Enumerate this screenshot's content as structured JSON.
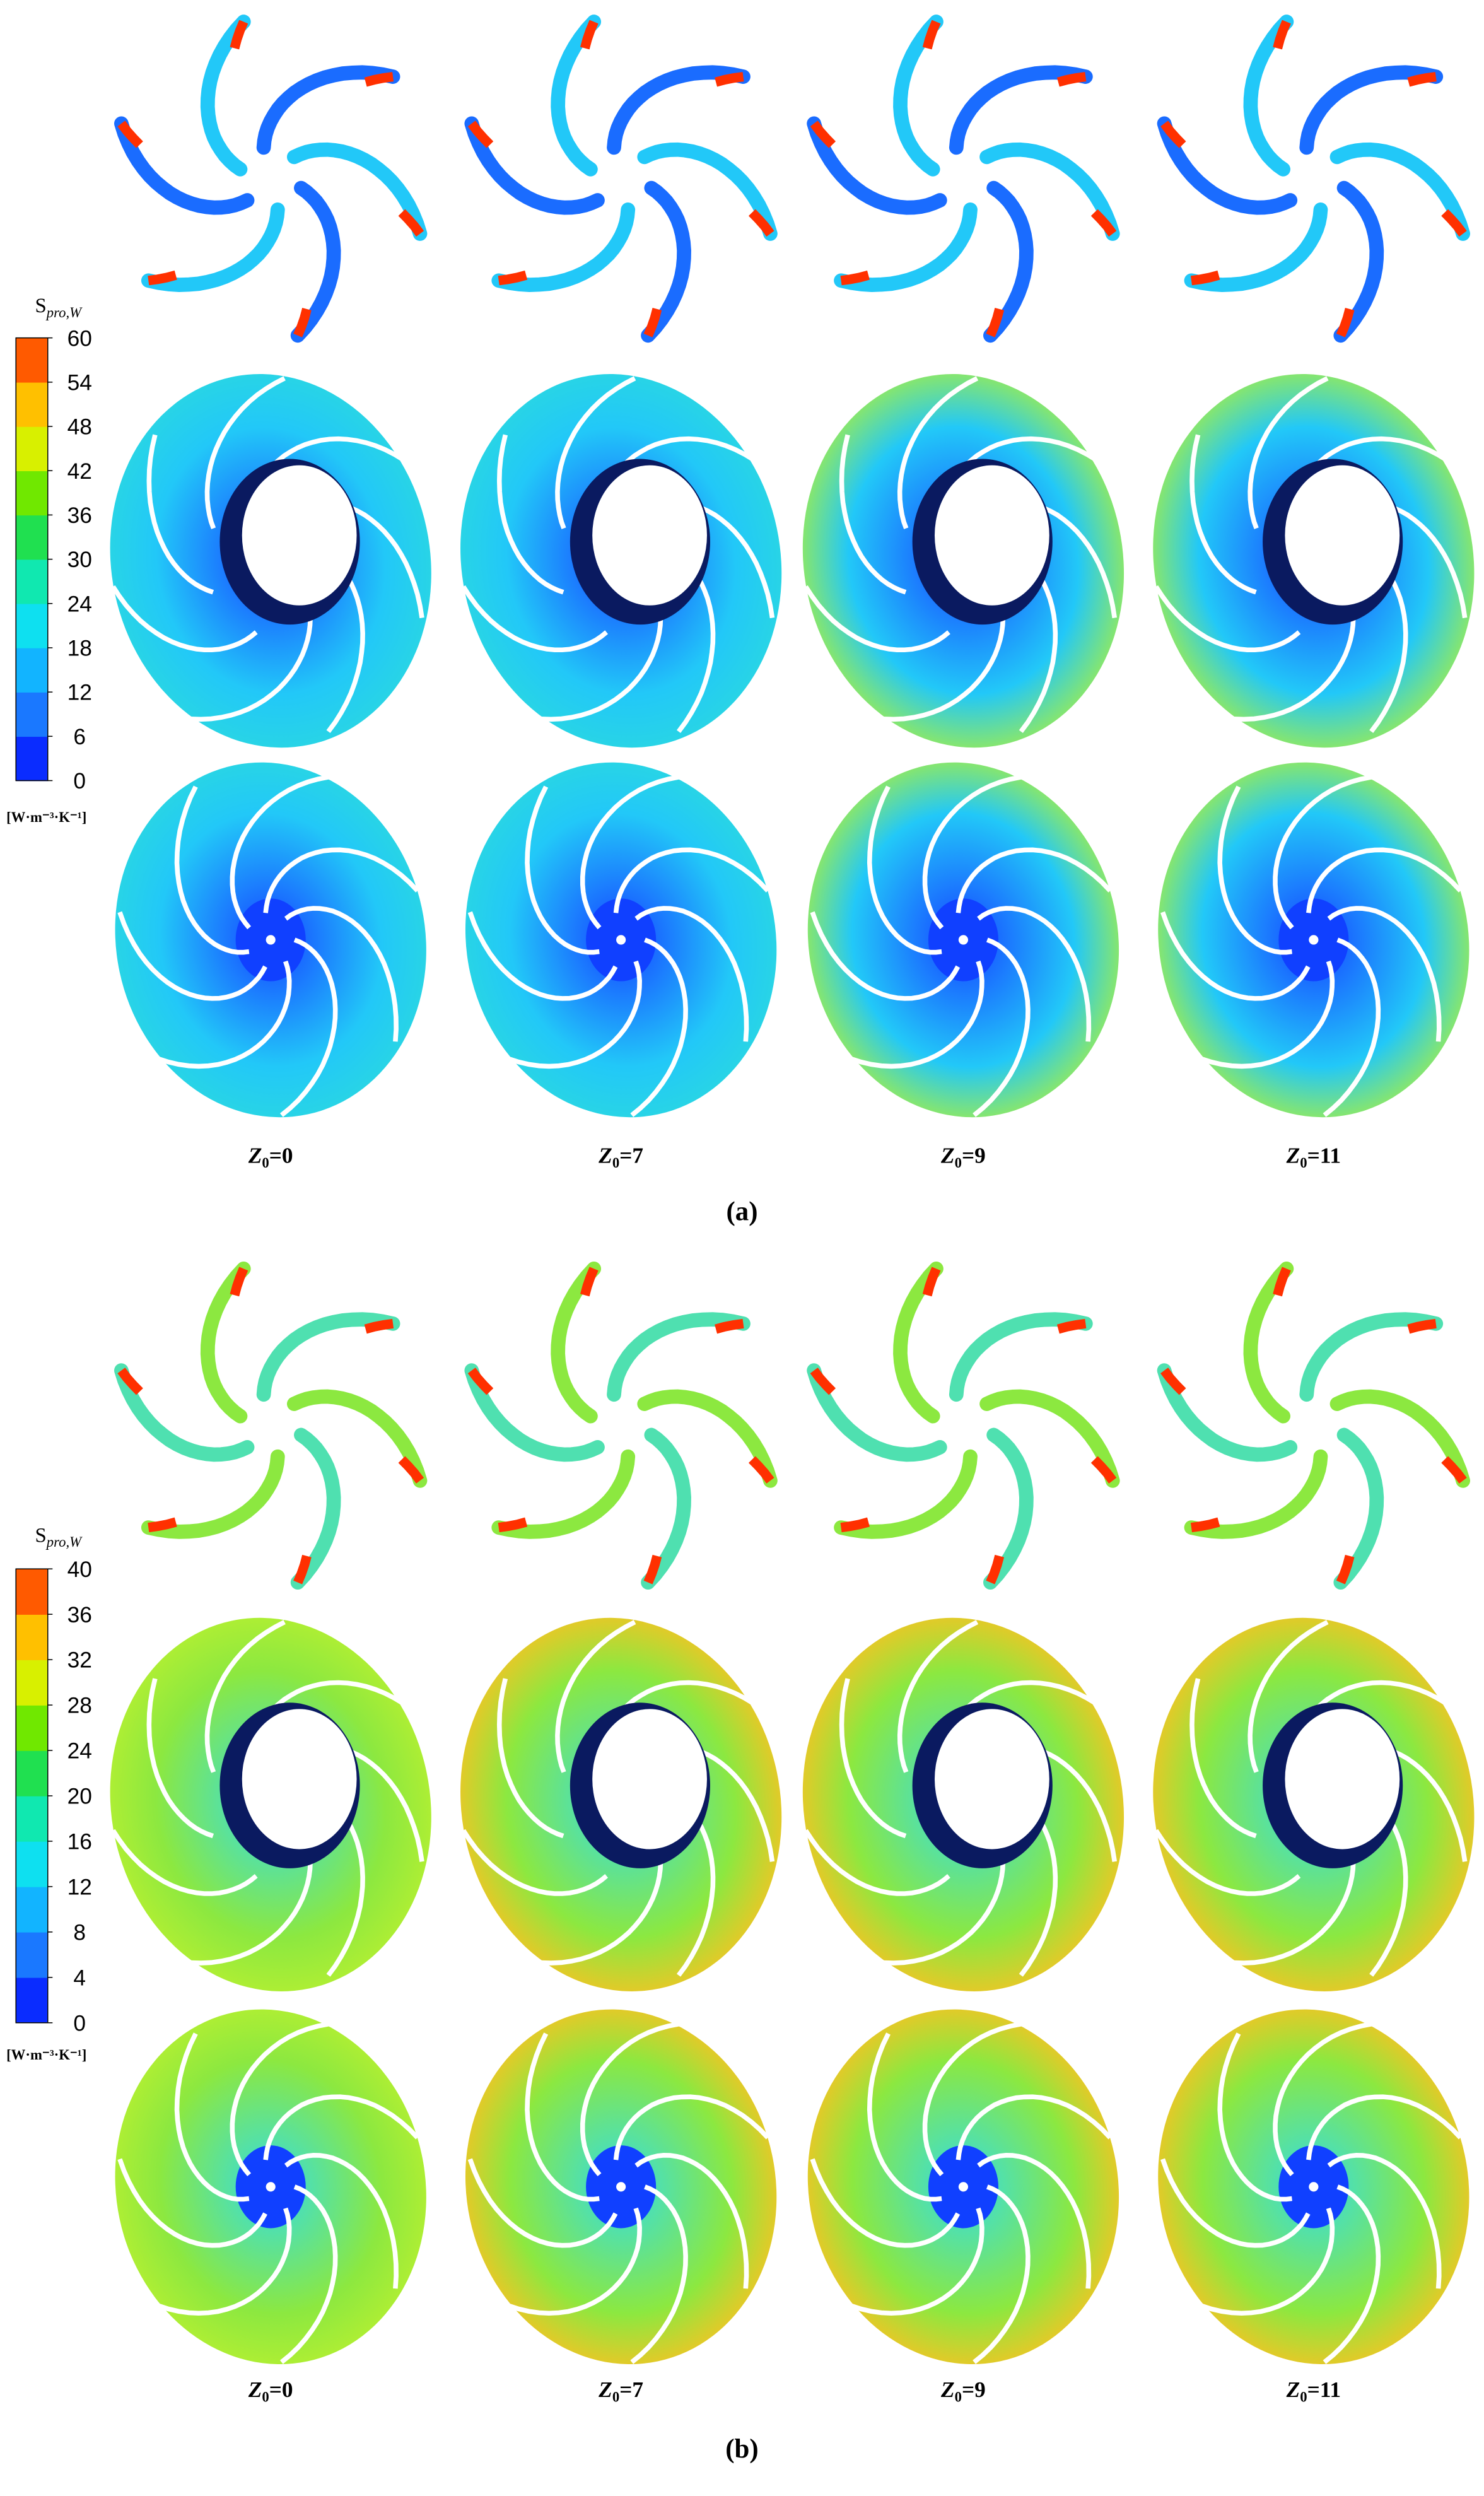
{
  "panels": [
    {
      "label": "(a)",
      "colorbar": {
        "title": "S",
        "title_sub": "pro,W",
        "ticks": [
          0,
          6,
          12,
          18,
          24,
          30,
          36,
          42,
          48,
          54,
          60
        ],
        "colors": [
          "#0a2cff",
          "#1a78ff",
          "#12b4ff",
          "#0ee0f0",
          "#10e8b0",
          "#20e050",
          "#70e800",
          "#d8f000",
          "#ffc000",
          "#ff5a00"
        ],
        "unit": "[W·m⁻³·K⁻¹]"
      },
      "columns": [
        {
          "symbol": "Z",
          "sub": "0",
          "suffix": "=0"
        },
        {
          "symbol": "Z",
          "sub": "0",
          "suffix": "=7"
        },
        {
          "symbol": "Z",
          "sub": "0",
          "suffix": "=9"
        },
        {
          "symbol": "Z",
          "sub": "0",
          "suffix": "=11"
        }
      ]
    },
    {
      "label": "(b)",
      "colorbar": {
        "title": "S",
        "title_sub": "pro,W",
        "ticks": [
          0,
          4,
          8,
          12,
          16,
          20,
          24,
          28,
          32,
          36,
          40
        ],
        "colors": [
          "#0a2cff",
          "#1a78ff",
          "#12b4ff",
          "#0ee0f0",
          "#10e8b0",
          "#20e050",
          "#70e800",
          "#d8f000",
          "#ffc000",
          "#ff5a00"
        ],
        "unit": "[W·m⁻³·K⁻¹]"
      },
      "columns": [
        {
          "symbol": "Z",
          "sub": "0",
          "suffix": "=0"
        },
        {
          "symbol": "Z",
          "sub": "0",
          "suffix": "=7"
        },
        {
          "symbol": "Z",
          "sub": "0",
          "suffix": "=9"
        },
        {
          "symbol": "Z",
          "sub": "0",
          "suffix": "=11"
        }
      ]
    }
  ]
}
